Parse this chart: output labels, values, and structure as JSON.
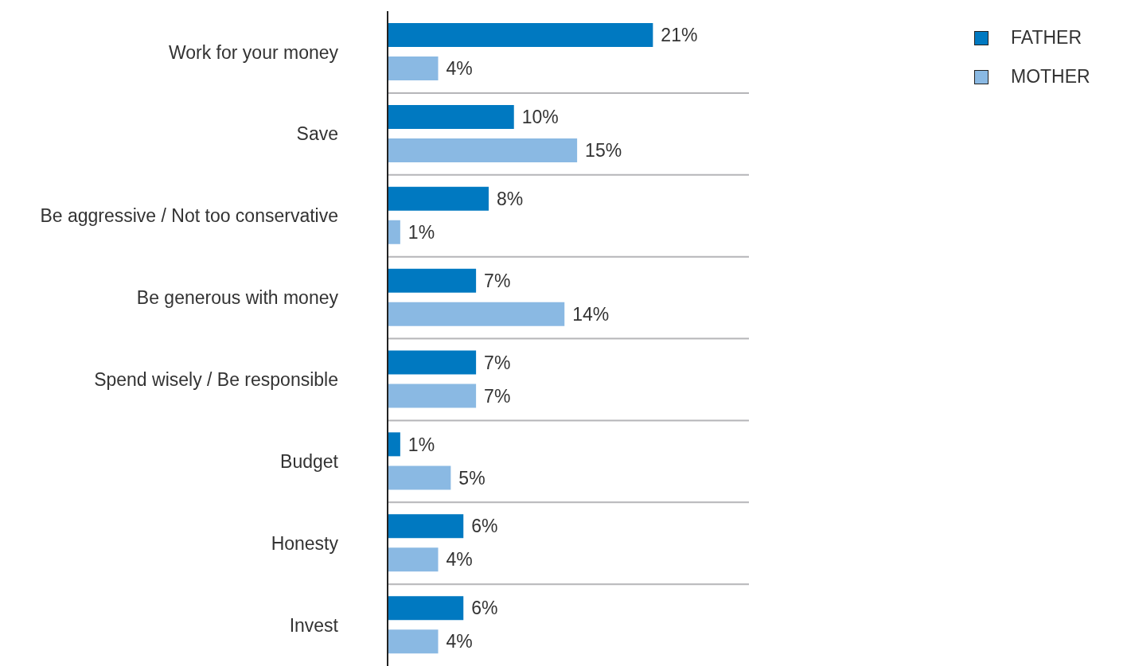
{
  "chart_data": {
    "type": "bar",
    "orientation": "horizontal",
    "categories": [
      "Work for your money",
      "Save",
      "Be aggressive / Not too conservative",
      "Be generous with money",
      "Spend wisely / Be responsible",
      "Budget",
      "Honesty",
      "Invest"
    ],
    "series": [
      {
        "name": "FATHER",
        "color": "#0079c1",
        "values": [
          21,
          10,
          8,
          7,
          7,
          1,
          6,
          6
        ],
        "value_labels": [
          "21%",
          "10%",
          "8%",
          "7%",
          "7%",
          "1%",
          "6%",
          "6%"
        ]
      },
      {
        "name": "MOTHER",
        "color": "#8ab9e3",
        "values": [
          4,
          15,
          1,
          14,
          7,
          5,
          4,
          4
        ],
        "value_labels": [
          "4%",
          "15%",
          "1%",
          "14%",
          "7%",
          "5%",
          "4%",
          "4%"
        ]
      }
    ],
    "xlim": [
      0,
      28.6
    ],
    "tick_labels": "y",
    "grid": "y",
    "legend": "top right"
  }
}
